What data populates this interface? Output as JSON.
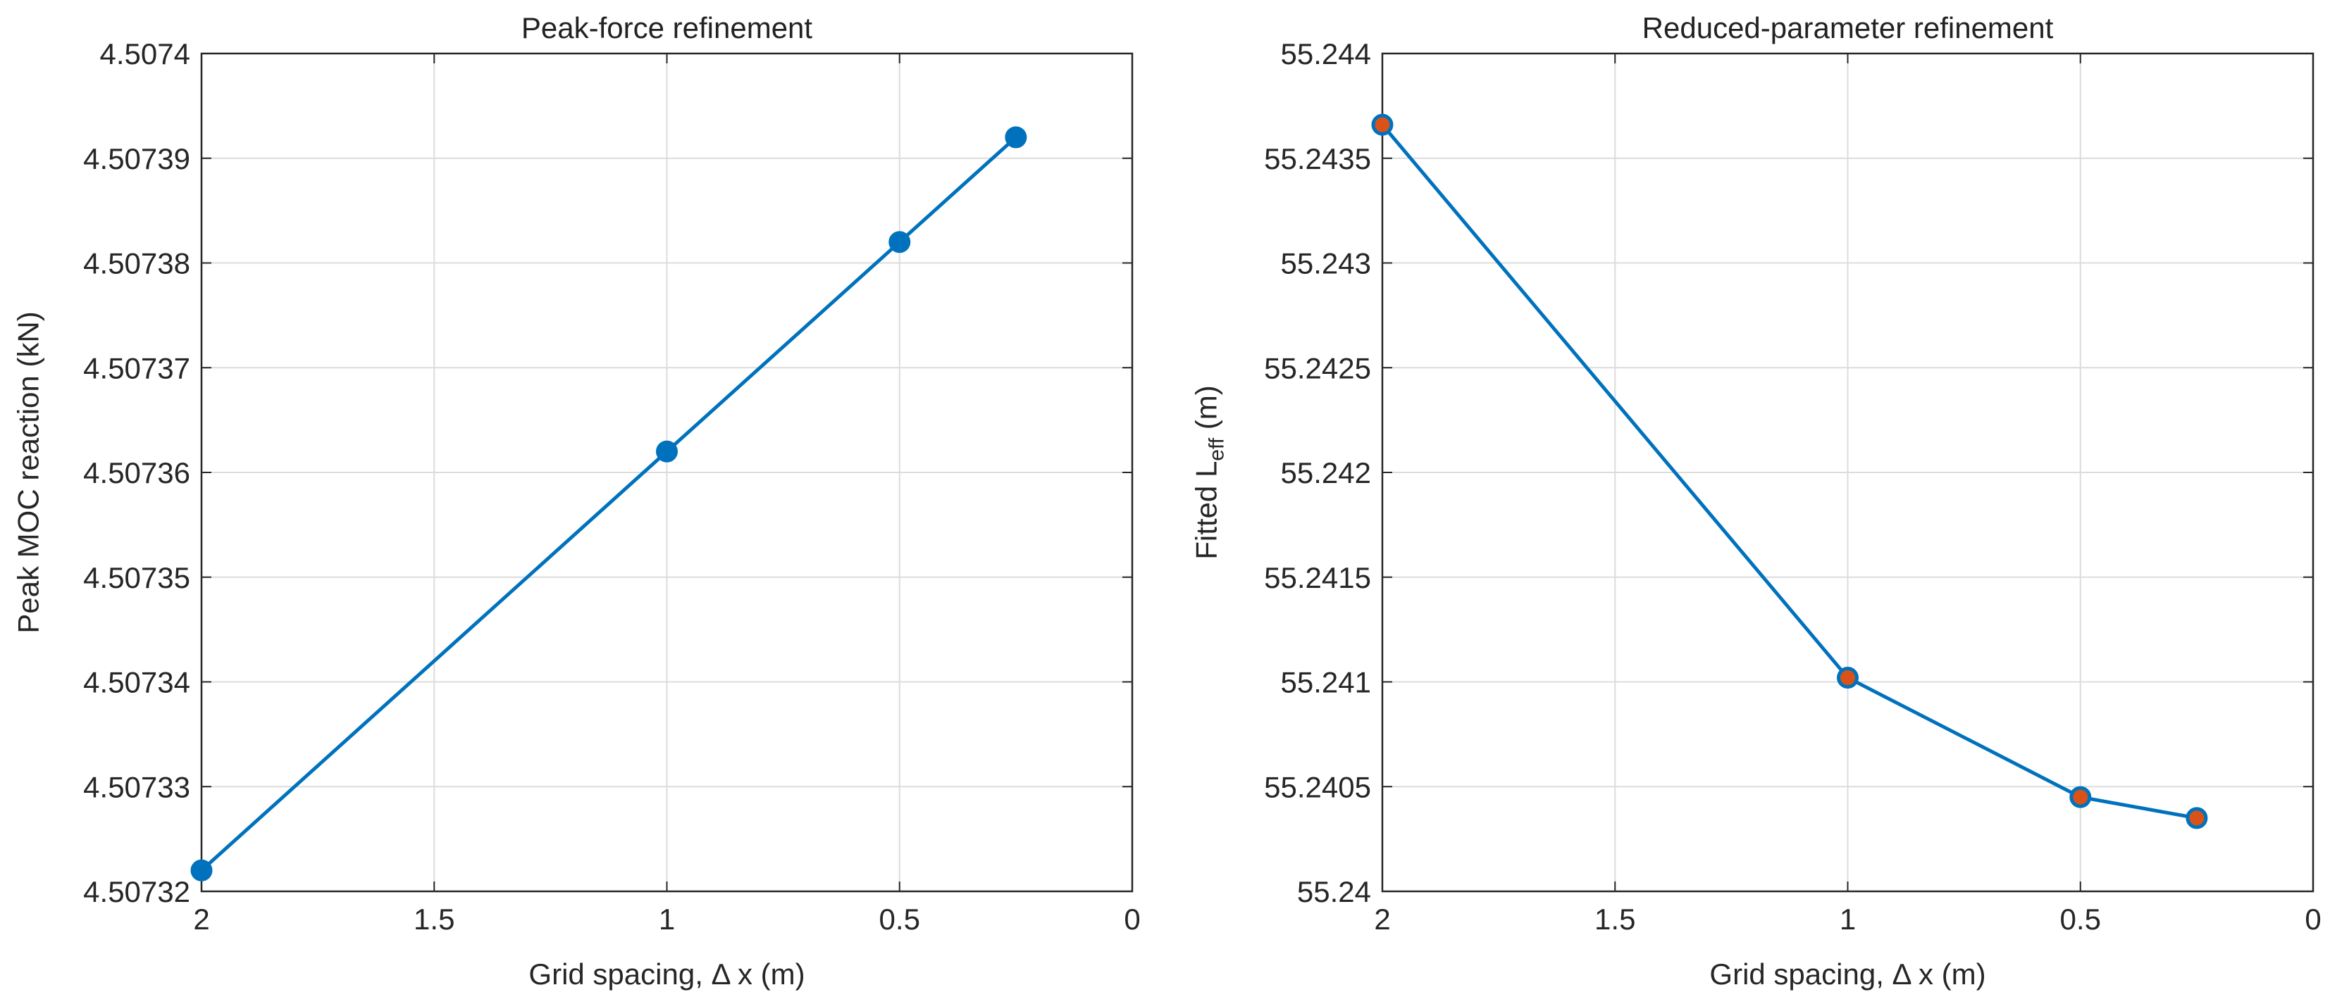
{
  "chart_data": [
    {
      "type": "line",
      "title": "Peak-force refinement",
      "xlabel": "Grid spacing, Δ x (m)",
      "ylabel": "Peak MOC reaction (kN)",
      "xlim": [
        2,
        0
      ],
      "x_reversed": true,
      "ylim": [
        4.50732,
        4.5074
      ],
      "xticks": [
        2,
        1.5,
        1,
        0.5,
        0
      ],
      "xtick_labels": [
        "2",
        "1.5",
        "1",
        "0.5",
        "0"
      ],
      "yticks": [
        4.50732,
        4.50733,
        4.50734,
        4.50735,
        4.50736,
        4.50737,
        4.50738,
        4.50739,
        4.5074
      ],
      "ytick_labels": [
        "4.50732",
        "4.50733",
        "4.50734",
        "4.50735",
        "4.50736",
        "4.50737",
        "4.50738",
        "4.50739",
        "4.5074"
      ],
      "grid": true,
      "series": [
        {
          "x": [
            2,
            1,
            0.5,
            0.25
          ],
          "y": [
            4.507322,
            4.507362,
            4.507382,
            4.507392
          ],
          "color": "#0072bd",
          "marker_fill": "#0072bd"
        }
      ]
    },
    {
      "type": "line",
      "title": "Reduced-parameter refinement",
      "xlabel": "Grid spacing, Δ x (m)",
      "ylabel": "Fitted L",
      "ylabel_subscript": "eff",
      "ylabel_suffix": " (m)",
      "xlim": [
        2,
        0
      ],
      "x_reversed": true,
      "ylim": [
        55.24,
        55.244
      ],
      "xticks": [
        2,
        1.5,
        1,
        0.5,
        0
      ],
      "xtick_labels": [
        "2",
        "1.5",
        "1",
        "0.5",
        "0"
      ],
      "yticks": [
        55.24,
        55.2405,
        55.241,
        55.2415,
        55.242,
        55.2425,
        55.243,
        55.2435,
        55.244
      ],
      "ytick_labels": [
        "55.24",
        "55.2405",
        "55.241",
        "55.2415",
        "55.242",
        "55.2425",
        "55.243",
        "55.2435",
        "55.244"
      ],
      "grid": true,
      "series": [
        {
          "x": [
            2,
            1,
            0.5,
            0.25
          ],
          "y": [
            55.24366,
            55.24102,
            55.24045,
            55.24035
          ],
          "color": "#0072bd",
          "marker_fill": "#d95319"
        }
      ]
    }
  ]
}
